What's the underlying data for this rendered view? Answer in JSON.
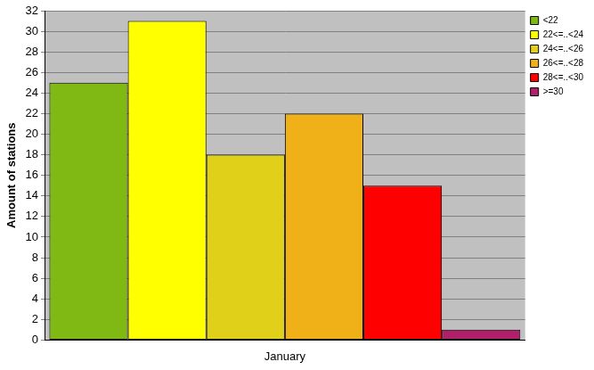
{
  "chart_data": {
    "type": "bar",
    "ylabel": "Amount of stations",
    "categories": [
      "January"
    ],
    "series": [
      {
        "name": "<22",
        "color": "#80b814",
        "values": [
          25
        ]
      },
      {
        "name": "22<=..<24",
        "color": "#ffff00",
        "values": [
          31
        ]
      },
      {
        "name": "24<=..<26",
        "color": "#e0d01a",
        "values": [
          18
        ]
      },
      {
        "name": "26<=..<28",
        "color": "#f0b018",
        "values": [
          22
        ]
      },
      {
        "name": "28<=..<30",
        "color": "#ff0000",
        "values": [
          15
        ]
      },
      {
        "name": ">=30",
        "color": "#b0206a",
        "values": [
          1
        ]
      }
    ],
    "ylim": [
      0,
      32
    ],
    "yticks": [
      0,
      2,
      4,
      6,
      8,
      10,
      12,
      14,
      16,
      18,
      20,
      22,
      24,
      26,
      28,
      30,
      32
    ],
    "grid": true,
    "legend": "top right"
  }
}
